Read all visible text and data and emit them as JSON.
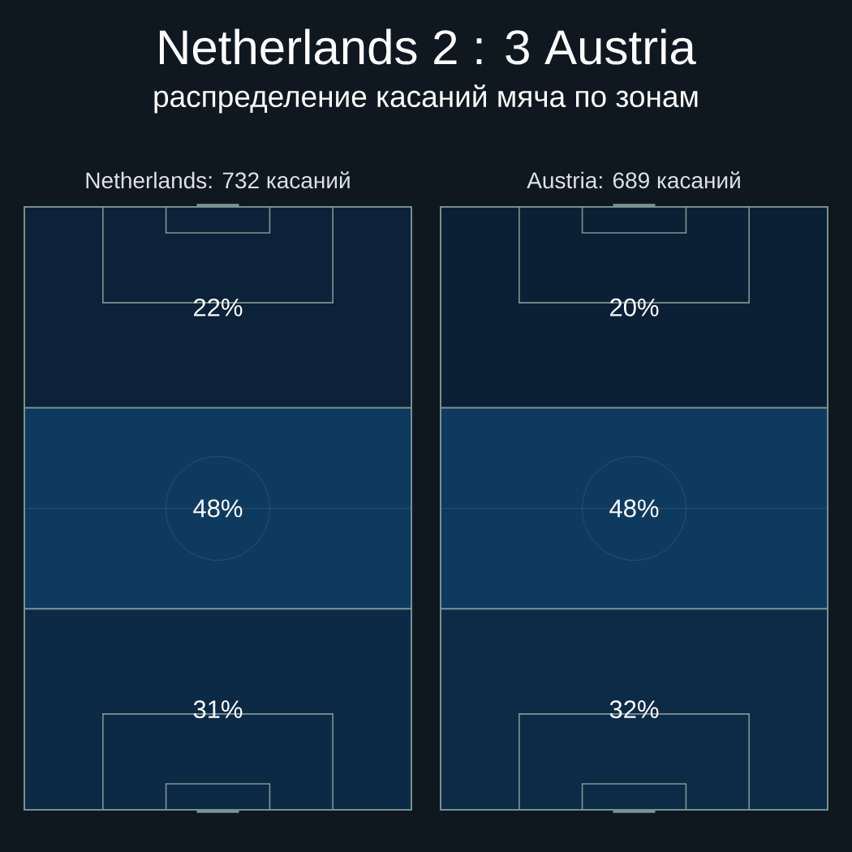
{
  "chart_data": [
    {
      "type": "other",
      "title": "Netherlands 2 : 3 Austria",
      "subtitle": "распределение касаний мяча по зонам"
    },
    {
      "type": "other",
      "title": "Netherlands: 732 касаний",
      "values": [
        22,
        48,
        31
      ],
      "value_labels": [
        "22%",
        "48%",
        "31%"
      ]
    },
    {
      "type": "other",
      "title": "Austria: 689 касаний",
      "values": [
        20,
        48,
        32
      ],
      "value_labels": [
        "20%",
        "48%",
        "32%"
      ]
    }
  ]
}
